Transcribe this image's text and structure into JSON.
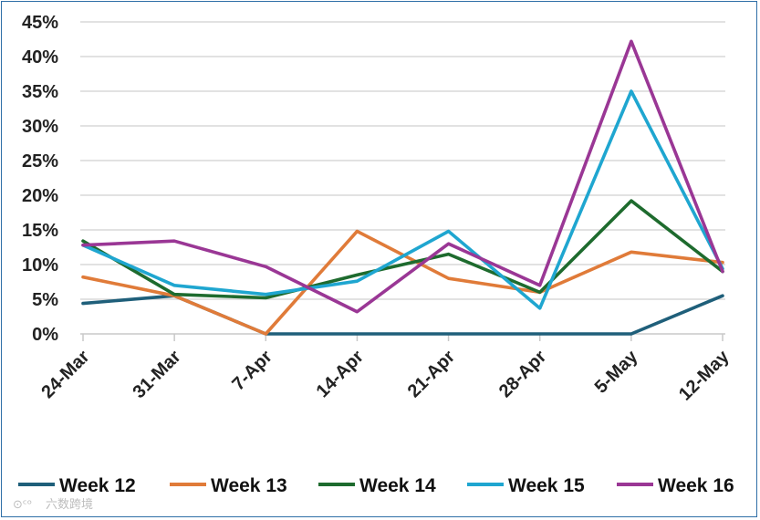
{
  "chart_data": {
    "type": "line",
    "title": "",
    "xlabel": "",
    "ylabel": "",
    "categories": [
      "24-Mar",
      "31-Mar",
      "7-Apr",
      "14-Apr",
      "21-Apr",
      "28-Apr",
      "5-May",
      "12-May"
    ],
    "ylim": [
      0,
      45
    ],
    "yticks": [
      0,
      5,
      10,
      15,
      20,
      25,
      30,
      35,
      40,
      45
    ],
    "ytick_labels": [
      "0%",
      "5%",
      "10%",
      "15%",
      "20%",
      "25%",
      "30%",
      "35%",
      "40%",
      "45%"
    ],
    "grid": true,
    "legend": "bottom",
    "series": [
      {
        "name": "Week 12",
        "color": "#1f5f7a",
        "values": [
          4.4,
          5.5,
          0,
          0,
          0,
          0,
          0,
          5.5
        ]
      },
      {
        "name": "Week 13",
        "color": "#e07b39",
        "values": [
          8.2,
          5.5,
          0,
          14.8,
          8,
          6,
          11.8,
          10.3
        ]
      },
      {
        "name": "Week 14",
        "color": "#1e6b2e",
        "values": [
          13.4,
          5.7,
          5.2,
          8.5,
          11.5,
          6,
          19.2,
          9
        ]
      },
      {
        "name": "Week 15",
        "color": "#1fa6d0",
        "values": [
          12.8,
          7,
          5.7,
          7.6,
          14.8,
          3.7,
          35,
          9.4
        ]
      },
      {
        "name": "Week 16",
        "color": "#9a3795",
        "values": [
          12.8,
          13.4,
          9.7,
          3.2,
          13,
          7,
          42.2,
          9
        ]
      }
    ]
  },
  "watermark": {
    "text": "六数跨境"
  }
}
